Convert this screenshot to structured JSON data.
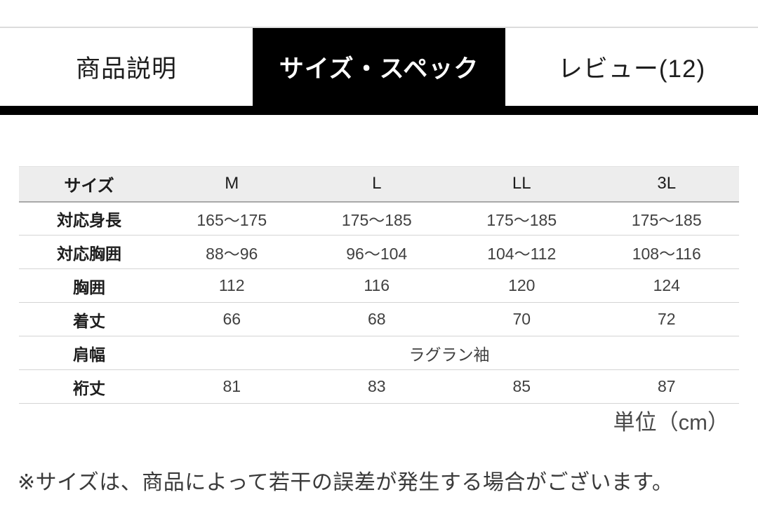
{
  "tabs": [
    {
      "label": "商品説明",
      "active": false
    },
    {
      "label": "サイズ・スペック",
      "active": true
    },
    {
      "label": "レビュー(12)",
      "active": false
    }
  ],
  "size_table": {
    "header": [
      "サイズ",
      "M",
      "L",
      "LL",
      "3L"
    ],
    "rows": [
      {
        "label": "対応身長",
        "values": [
          "165〜175",
          "175〜185",
          "175〜185",
          "175〜185"
        ]
      },
      {
        "label": "対応胸囲",
        "values": [
          "88〜96",
          "96〜104",
          "104〜112",
          "108〜116"
        ]
      },
      {
        "label": "胸囲",
        "values": [
          "112",
          "116",
          "120",
          "124"
        ]
      },
      {
        "label": "着丈",
        "values": [
          "66",
          "68",
          "70",
          "72"
        ]
      },
      {
        "label": "肩幅",
        "values": [
          "ラグラン袖"
        ]
      },
      {
        "label": "裄丈",
        "values": [
          "81",
          "83",
          "85",
          "87"
        ]
      }
    ],
    "unit_label": "単位（cm）"
  },
  "note": "※サイズは、商品によって若干の誤差が発生する場合がございます。",
  "colors": {
    "accent": "#000000",
    "tab_active_bg": "#000000",
    "tab_active_text": "#ffffff",
    "table_header_bg": "#ededed"
  }
}
